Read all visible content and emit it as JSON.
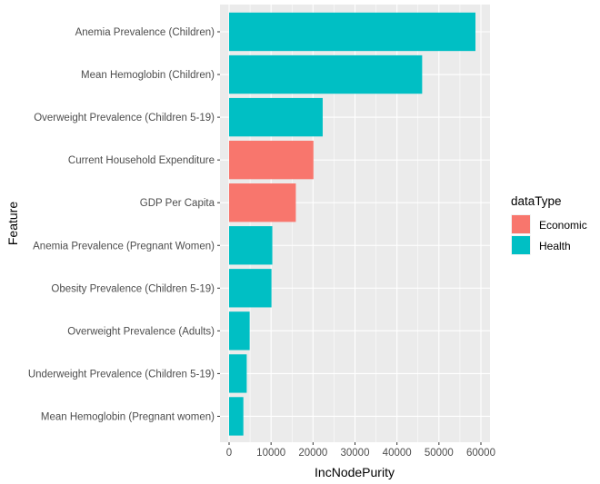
{
  "chart_data": {
    "type": "bar",
    "orientation": "horizontal",
    "xlabel": "IncNodePurity",
    "ylabel": "Feature",
    "xlim": [
      0,
      60000
    ],
    "x_ticks": [
      0,
      10000,
      20000,
      30000,
      40000,
      50000,
      60000
    ],
    "x_tick_labels": [
      "0",
      "10000",
      "20000",
      "30000",
      "40000",
      "50000",
      "60000"
    ],
    "grid": true,
    "legend": {
      "title": "dataType",
      "placement": "right",
      "entries": [
        {
          "name": "Economic",
          "color": "#F8766D"
        },
        {
          "name": "Health",
          "color": "#00BFC4"
        }
      ]
    },
    "categories": [
      "Anemia Prevalence (Children)",
      "Mean Hemoglobin (Children)",
      "Overweight Prevalence (Children 5-19)",
      "Current Household Expenditure",
      "GDP Per Capita",
      "Anemia Prevalence (Pregnant Women)",
      "Obesity Prevalence (Children 5-19)",
      "Overweight Prevalence (Adults)",
      "Underweight Prevalence (Children 5-19)",
      "Mean Hemoglobin (Pregnant women)"
    ],
    "values": [
      58700,
      46000,
      22300,
      20100,
      15900,
      10300,
      10100,
      4900,
      4200,
      3400
    ],
    "groups": [
      "Health",
      "Health",
      "Health",
      "Economic",
      "Economic",
      "Health",
      "Health",
      "Health",
      "Health",
      "Health"
    ]
  }
}
